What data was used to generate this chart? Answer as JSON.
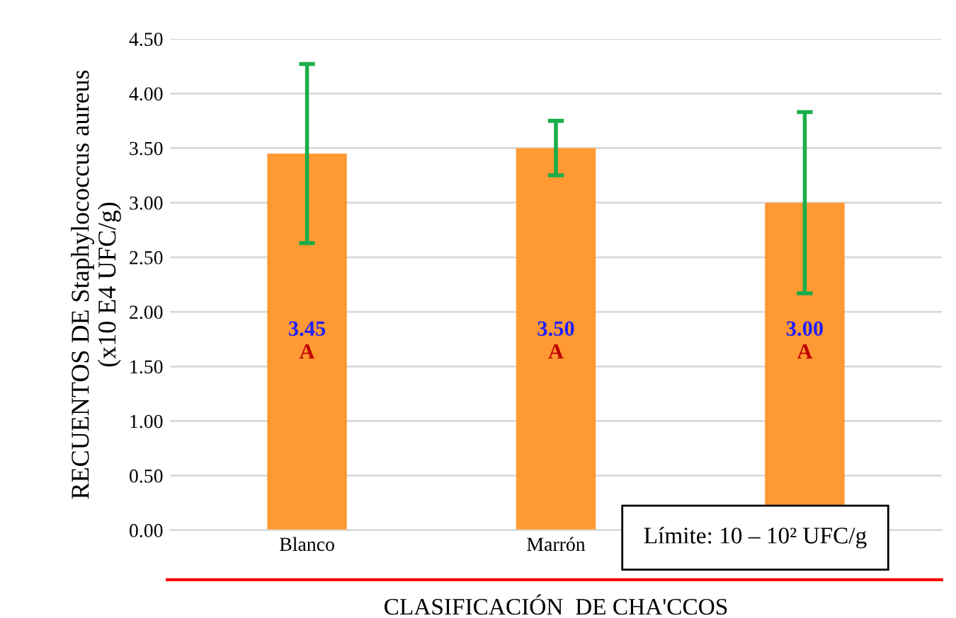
{
  "chart_data": {
    "type": "bar",
    "categories": [
      "Blanco",
      "Marrón",
      null
    ],
    "values": [
      3.45,
      3.5,
      3.0
    ],
    "color": "#ff9933",
    "errors": [
      0.82,
      0.25,
      0.83
    ],
    "value_labels": [
      "3.45",
      "3.50",
      "3.00"
    ],
    "ylabel": "RECUENTOS DE Staphylococcus aureus\n(x10 E4 UFC/g)",
    "xlabel": "CLASIFICACIÓN  DE CHA'CCOS",
    "ylim": [
      0,
      4.5
    ],
    "yticks": [
      {
        "value": 0,
        "label": "0.00"
      },
      {
        "value": 0.5,
        "label": "0.50"
      },
      {
        "value": 1,
        "label": "1.00"
      },
      {
        "value": 1.5,
        "label": "1.50"
      },
      {
        "value": 2,
        "label": "2.00"
      },
      {
        "value": 2.5,
        "label": "2.50"
      },
      {
        "value": 3,
        "label": "3.00"
      },
      {
        "value": 3.5,
        "label": "3.50"
      },
      {
        "value": 4,
        "label": "4.00"
      },
      {
        "value": 4.5,
        "label": "4.50"
      }
    ],
    "grid": "y",
    "annotations": [
      "A",
      "A",
      "A",
      "Límite: 10 – 10² UFC/g"
    ]
  }
}
